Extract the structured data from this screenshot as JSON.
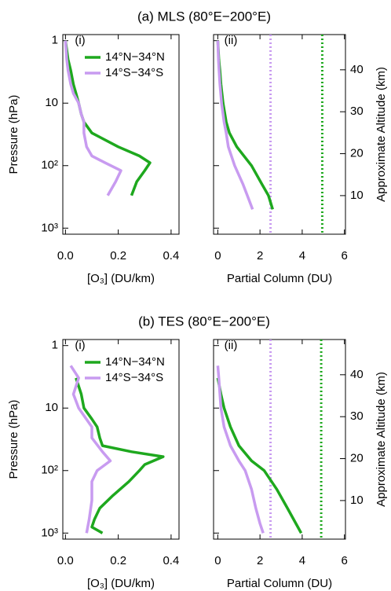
{
  "chart_data": [
    {
      "type": "line",
      "title": "(a) MLS (80°E−200°E)",
      "panel_label": "(i)",
      "xlabel": "[O₃] (DU/km)",
      "ylabel": "Pressure (hPa)",
      "xlim": [
        -0.01,
        0.43
      ],
      "xticks": [
        {
          "value": 0,
          "label": "0.0"
        },
        0.2,
        0.4
      ],
      "ylim": [
        1250,
        0.8
      ],
      "y_scale": "log",
      "yticks": [
        1,
        10,
        {
          "value": 100,
          "label": "10²"
        },
        {
          "value": 1000,
          "label": "10³"
        }
      ],
      "legend": "upper right",
      "series": [
        {
          "name": "14°N−34°N",
          "color": "#1ea81e",
          "pressure": [
            1,
            2,
            3,
            5,
            7,
            10,
            15,
            20,
            30,
            50,
            70,
            90,
            120,
            180,
            300
          ],
          "values": [
            0.0,
            0.01,
            0.02,
            0.03,
            0.04,
            0.05,
            0.06,
            0.07,
            0.1,
            0.2,
            0.28,
            0.32,
            0.3,
            0.27,
            0.25
          ]
        },
        {
          "name": "14°S−34°S",
          "color": "#c89bf0",
          "pressure": [
            1,
            2,
            3,
            5,
            7,
            10,
            15,
            20,
            30,
            50,
            70,
            90,
            120,
            180,
            300
          ],
          "values": [
            0.0,
            0.005,
            0.01,
            0.02,
            0.03,
            0.05,
            0.06,
            0.07,
            0.07,
            0.08,
            0.1,
            0.15,
            0.21,
            0.19,
            0.16
          ]
        }
      ]
    },
    {
      "type": "line",
      "panel_label": "(ii)",
      "xlabel": "Partial Column (DU)",
      "y2label": "Approximate Altitude (km)",
      "xlim": [
        -0.2,
        6.05
      ],
      "xticks": [
        0,
        2,
        4,
        6
      ],
      "ylim": [
        1250,
        0.8
      ],
      "y_scale": "log",
      "y2lim": [
        0.8,
        48.4
      ],
      "y2ticks": [
        10,
        20,
        30,
        40
      ],
      "series": [
        {
          "color": "#1ea81e",
          "pressure": [
            1,
            2,
            3,
            5,
            10,
            20,
            30,
            50,
            100,
            200,
            300,
            500
          ],
          "values": [
            0,
            0.05,
            0.1,
            0.15,
            0.25,
            0.4,
            0.55,
            0.9,
            1.6,
            2.1,
            2.4,
            2.6
          ]
        },
        {
          "color": "#c89bf0",
          "pressure": [
            1,
            2,
            3,
            5,
            10,
            20,
            30,
            50,
            100,
            200,
            300,
            500
          ],
          "values": [
            0,
            0.03,
            0.06,
            0.1,
            0.18,
            0.3,
            0.4,
            0.5,
            0.8,
            1.2,
            1.4,
            1.65
          ]
        }
      ],
      "reference_lines": [
        {
          "value": 2.5,
          "color": "#c89bf0",
          "style": "dotted"
        },
        {
          "value": 4.95,
          "color": "#1ea81e",
          "style": "dotted"
        }
      ]
    },
    {
      "type": "line",
      "title": "(b) TES (80°E−200°E)",
      "panel_label": "(i)",
      "xlabel": "[O₃] (DU/km)",
      "ylabel": "Pressure (hPa)",
      "xlim": [
        -0.01,
        0.43
      ],
      "xticks": [
        {
          "value": 0,
          "label": "0.0"
        },
        0.2,
        0.4
      ],
      "ylim": [
        1250,
        0.8
      ],
      "y_scale": "log",
      "yticks": [
        1,
        10,
        {
          "value": 100,
          "label": "10²"
        },
        {
          "value": 1000,
          "label": "10³"
        }
      ],
      "legend": "upper right",
      "series": [
        {
          "name": "14°N−34°N",
          "color": "#1ea81e",
          "pressure": [
            3.3,
            6,
            10,
            15,
            20,
            30,
            40,
            50,
            60,
            80,
            100,
            150,
            250,
            400,
            600,
            800,
            1000
          ],
          "values": [
            0.04,
            0.06,
            0.07,
            0.1,
            0.12,
            0.13,
            0.14,
            0.25,
            0.37,
            0.3,
            0.28,
            0.24,
            0.18,
            0.13,
            0.11,
            0.1,
            0.14
          ]
        },
        {
          "name": "14°S−34°S",
          "color": "#c89bf0",
          "pressure": [
            2.1,
            3.3,
            6,
            10,
            20,
            30,
            50,
            70,
            100,
            150,
            300,
            600,
            1000
          ],
          "values": [
            0.02,
            0.05,
            0.03,
            0.05,
            0.1,
            0.1,
            0.14,
            0.17,
            0.12,
            0.1,
            0.1,
            0.09,
            0.08
          ]
        }
      ]
    },
    {
      "type": "line",
      "panel_label": "(ii)",
      "xlabel": "Partial Column (DU)",
      "y2label": "Approximate Altitude (km)",
      "xlim": [
        -0.2,
        6.05
      ],
      "xticks": [
        0,
        2,
        4,
        6
      ],
      "ylim": [
        1250,
        0.8
      ],
      "y_scale": "log",
      "y2lim": [
        0.8,
        48.4
      ],
      "y2ticks": [
        10,
        20,
        30,
        40
      ],
      "series": [
        {
          "color": "#1ea81e",
          "pressure": [
            3.3,
            6,
            10,
            20,
            40,
            70,
            100,
            200,
            400,
            700,
            1000
          ],
          "values": [
            0,
            0.15,
            0.3,
            0.6,
            1.0,
            1.6,
            2.2,
            2.8,
            3.3,
            3.7,
            3.95
          ]
        },
        {
          "color": "#c89bf0",
          "pressure": [
            2.1,
            3.3,
            6,
            10,
            20,
            40,
            70,
            100,
            200,
            400,
            700,
            1000
          ],
          "values": [
            0,
            0.05,
            0.1,
            0.15,
            0.3,
            0.6,
            1.0,
            1.3,
            1.6,
            1.8,
            2.0,
            2.15
          ]
        }
      ],
      "reference_lines": [
        {
          "value": 2.5,
          "color": "#c89bf0",
          "style": "dotted"
        },
        {
          "value": 4.9,
          "color": "#1ea81e",
          "style": "dotted"
        }
      ]
    }
  ]
}
